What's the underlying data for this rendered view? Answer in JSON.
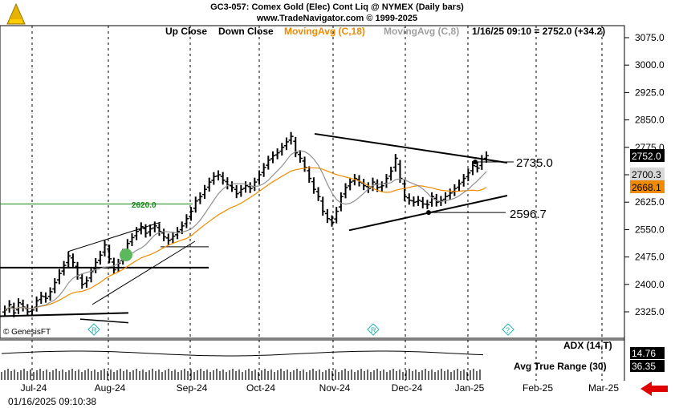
{
  "header": {
    "title": "GC3-057: Comex Gold (Elec) Cont Liq @ NYMEX  (Daily bars)",
    "copyright": "www.TradeNavigator.com © 1999-2025"
  },
  "legend": {
    "up_close": "Up Close",
    "down_close": "Down Close",
    "ma18": "MovingAvg (C,18)",
    "ma8": "MovingAvg (C,8)",
    "status": "1/16/25 09:10 = 2752.0 (+34.2)"
  },
  "footer": {
    "timestamp": "01/16/2025 09:10:38",
    "watermark": "© GenesisFT"
  },
  "chart_data": {
    "type": "bar",
    "subtype": "ohlc-price-chart",
    "y_axis": {
      "ticks": [
        2325.0,
        2400.0,
        2475.0,
        2550.0,
        2625.0,
        2700.0,
        2775.0,
        2850.0,
        2925.0,
        3000.0,
        3075.0
      ],
      "range": [
        2290,
        3105
      ],
      "side": "right"
    },
    "x_axis": {
      "months": [
        "Jul-24",
        "Aug-24",
        "Sep-24",
        "Oct-24",
        "Nov-24",
        "Dec-24",
        "Jan-25",
        "Feb-25",
        "Mar-25"
      ]
    },
    "price_closes": [
      2330,
      2345,
      2322,
      2350,
      2338,
      2325,
      2330,
      2355,
      2368,
      2362,
      2380,
      2405,
      2430,
      2452,
      2478,
      2460,
      2425,
      2400,
      2410,
      2435,
      2460,
      2480,
      2508,
      2470,
      2440,
      2458,
      2485,
      2512,
      2528,
      2545,
      2558,
      2540,
      2552,
      2560,
      2545,
      2530,
      2520,
      2532,
      2545,
      2560,
      2580,
      2600,
      2628,
      2640,
      2660,
      2680,
      2695,
      2700,
      2685,
      2672,
      2665,
      2648,
      2660,
      2670,
      2662,
      2680,
      2700,
      2720,
      2740,
      2752,
      2760,
      2775,
      2790,
      2805,
      2760,
      2745,
      2720,
      2690,
      2660,
      2640,
      2600,
      2580,
      2570,
      2600,
      2640,
      2665,
      2680,
      2690,
      2680,
      2670,
      2662,
      2680,
      2665,
      2670,
      2690,
      2710,
      2745,
      2690,
      2640,
      2630,
      2625,
      2630,
      2620,
      2618,
      2640,
      2625,
      2630,
      2640,
      2650,
      2662,
      2675,
      2690,
      2705,
      2725,
      2718,
      2742,
      2752
    ],
    "ma18_last": 2668.1,
    "ma8_last": 2700.3,
    "last_price": 2752.0,
    "change": 34.2,
    "current_price_label": "2752.0",
    "ma8_label": "2700.3",
    "ma18_label": "2668.1",
    "levels": [
      {
        "label": "2735.0",
        "value": 2735.0
      },
      {
        "label": "2596.7",
        "value": 2596.7
      },
      {
        "label": "2620.0",
        "value": 2620.0
      }
    ],
    "markers": [
      "R",
      "R",
      "?"
    ],
    "indicators": [
      {
        "name": "ADX (14,T)",
        "value": "14.76"
      },
      {
        "name": "Avg True Range (30)",
        "value": "36.35"
      }
    ]
  }
}
